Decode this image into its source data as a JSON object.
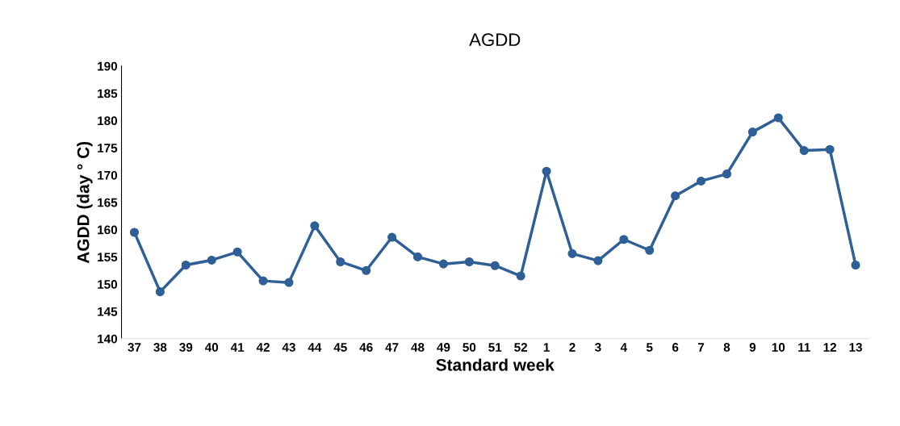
{
  "chart_data": {
    "type": "line",
    "title": "AGDD",
    "xlabel": "Standard week",
    "ylabel": "AGDD (day ° C)",
    "categories": [
      "37",
      "38",
      "39",
      "40",
      "41",
      "42",
      "43",
      "44",
      "45",
      "46",
      "47",
      "48",
      "49",
      "50",
      "51",
      "52",
      "1",
      "2",
      "3",
      "4",
      "5",
      "6",
      "7",
      "8",
      "9",
      "10",
      "11",
      "12",
      "13"
    ],
    "series": [
      {
        "color": "#2e5f97",
        "values": [
          159.5,
          148.6,
          153.5,
          154.4,
          155.9,
          150.6,
          150.3,
          160.7,
          154.1,
          152.5,
          158.6,
          155.0,
          153.7,
          154.1,
          153.4,
          151.5,
          170.7,
          155.6,
          154.3,
          158.2,
          156.2,
          166.2,
          168.9,
          170.2,
          177.9,
          180.5,
          174.5,
          174.7,
          153.5
        ]
      }
    ],
    "ylim": [
      140,
      190
    ],
    "yticks": [
      140,
      145,
      150,
      155,
      160,
      165,
      170,
      175,
      180,
      185,
      190
    ],
    "marker": "circle",
    "line_style": "solid",
    "grid": false,
    "legend": false
  }
}
